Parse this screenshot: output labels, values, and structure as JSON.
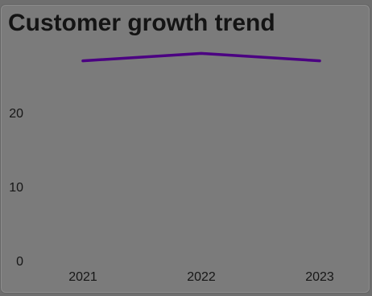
{
  "chart_data": {
    "type": "line",
    "title": "Customer growth trend",
    "xlabel": "",
    "ylabel": "",
    "categories": [
      "2021",
      "2022",
      "2023"
    ],
    "series": [
      {
        "values": [
          27,
          28,
          27
        ]
      }
    ],
    "yticks": [
      "0",
      "10",
      "20"
    ],
    "ylim": [
      0,
      30
    ],
    "grid": false,
    "legend": "none",
    "line_color": "#4b0082",
    "background_color": "#7b7b7b",
    "text_color": "#161616"
  }
}
